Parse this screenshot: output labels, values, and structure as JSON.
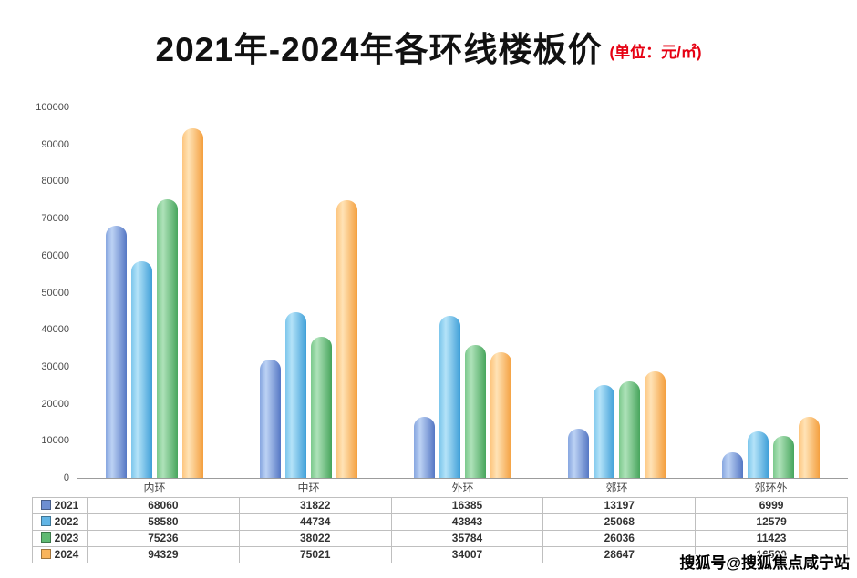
{
  "title": "2021年-2024年各环线楼板价",
  "unit": "(单位：元/㎡)",
  "watermark": "搜狐号@搜狐焦点咸宁站",
  "chart_data": {
    "type": "bar",
    "title": "2021年-2024年各环线楼板价",
    "unit_label": "元/㎡",
    "categories": [
      "内环",
      "中环",
      "外环",
      "郊环",
      "郊环外"
    ],
    "series": [
      {
        "name": "2021",
        "values": [
          68060,
          31822,
          16385,
          13197,
          6999
        ],
        "color": "#87a6e0",
        "color_light": "#bcd2f4",
        "color_dark": "#5577c4",
        "marker": "#6e8fd2"
      },
      {
        "name": "2022",
        "values": [
          58580,
          44734,
          43843,
          25068,
          12579
        ],
        "color": "#7cc6ec",
        "color_light": "#b4e3f8",
        "color_dark": "#3f9fd8",
        "marker": "#62b5e5"
      },
      {
        "name": "2023",
        "values": [
          75236,
          38022,
          35784,
          26036,
          11423
        ],
        "color": "#7bc98c",
        "color_light": "#aee2b9",
        "color_dark": "#47a55c",
        "marker": "#5fba72"
      },
      {
        "name": "2024",
        "values": [
          94329,
          75021,
          34007,
          28647,
          16500
        ],
        "color": "#fdc57e",
        "color_light": "#ffe3b6",
        "color_dark": "#f49f3e",
        "marker": "#f9b45c"
      }
    ],
    "ylim": [
      0,
      100000
    ],
    "ytick_step": 10000,
    "grid": false,
    "legend_position": "table-left"
  }
}
